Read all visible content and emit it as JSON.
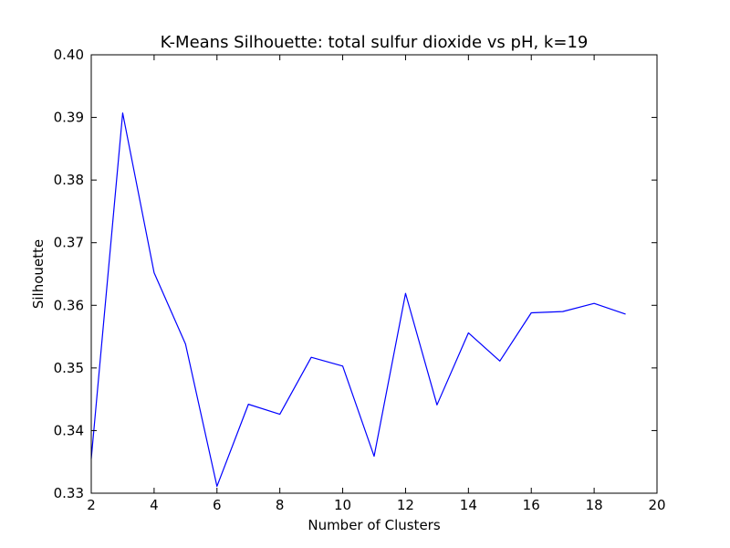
{
  "chart_data": {
    "type": "line",
    "title": "K-Means Silhouette: total sulfur dioxide vs pH, k=19",
    "xlabel": "Number of Clusters",
    "ylabel": "Silhouette",
    "xlim": [
      2,
      20
    ],
    "ylim": [
      0.33,
      0.4
    ],
    "xticks": [
      2,
      4,
      6,
      8,
      10,
      12,
      14,
      16,
      18,
      20
    ],
    "yticks": [
      0.33,
      0.34,
      0.35,
      0.36,
      0.37,
      0.38,
      0.39,
      0.4
    ],
    "xtick_labels": [
      "2",
      "4",
      "6",
      "8",
      "10",
      "12",
      "14",
      "16",
      "18",
      "20"
    ],
    "ytick_labels": [
      "0.33",
      "0.34",
      "0.35",
      "0.36",
      "0.37",
      "0.38",
      "0.39",
      "0.40"
    ],
    "grid": false,
    "series": [
      {
        "color": "#0000ff",
        "x": [
          2,
          3,
          4,
          5,
          6,
          7,
          8,
          9,
          10,
          11,
          12,
          13,
          14,
          15,
          16,
          17,
          18,
          19
        ],
        "y": [
          0.3355,
          0.3907,
          0.3652,
          0.3538,
          0.3311,
          0.3442,
          0.3426,
          0.3517,
          0.3503,
          0.3359,
          0.3619,
          0.3441,
          0.3556,
          0.3511,
          0.3588,
          0.359,
          0.3603,
          0.3586
        ]
      }
    ]
  }
}
